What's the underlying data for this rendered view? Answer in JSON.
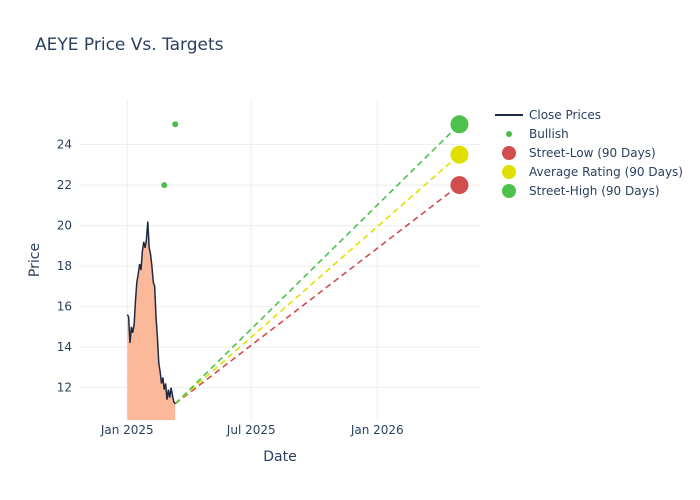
{
  "chart_data": {
    "type": "line",
    "title": "AEYE Price Vs. Targets",
    "xlabel": "Date",
    "ylabel": "Price",
    "xlim": [
      "2024-10-24",
      "2026-05-31"
    ],
    "ylim": [
      10.4,
      26.2
    ],
    "grid": true,
    "legend_position": "right",
    "x_ticks": [
      {
        "date": "2025-01-01",
        "label": "Jan 2025"
      },
      {
        "date": "2025-07-01",
        "label": "Jul 2025"
      },
      {
        "date": "2026-01-01",
        "label": "Jan 2026"
      }
    ],
    "y_ticks": [
      12,
      14,
      16,
      18,
      20,
      22,
      24
    ],
    "series": [
      {
        "name": "Close Prices",
        "type": "line",
        "color": "#1f2a44",
        "fill_color": "#fbb99a",
        "points": [
          [
            "2025-01-01",
            15.6
          ],
          [
            "2025-01-03",
            15.5
          ],
          [
            "2025-01-05",
            14.2
          ],
          [
            "2025-01-07",
            15.0
          ],
          [
            "2025-01-09",
            14.7
          ],
          [
            "2025-01-11",
            15.1
          ],
          [
            "2025-01-13",
            16.3
          ],
          [
            "2025-01-15",
            17.2
          ],
          [
            "2025-01-17",
            17.6
          ],
          [
            "2025-01-19",
            18.1
          ],
          [
            "2025-01-21",
            17.8
          ],
          [
            "2025-01-23",
            18.7
          ],
          [
            "2025-01-25",
            19.2
          ],
          [
            "2025-01-27",
            18.9
          ],
          [
            "2025-01-29",
            19.3
          ],
          [
            "2025-01-31",
            20.2
          ],
          [
            "2025-02-02",
            18.9
          ],
          [
            "2025-02-04",
            18.6
          ],
          [
            "2025-02-06",
            18.0
          ],
          [
            "2025-02-08",
            17.2
          ],
          [
            "2025-02-10",
            17.0
          ],
          [
            "2025-02-12",
            15.5
          ],
          [
            "2025-02-14",
            14.5
          ],
          [
            "2025-02-16",
            13.2
          ],
          [
            "2025-02-18",
            12.8
          ],
          [
            "2025-02-20",
            12.2
          ],
          [
            "2025-02-22",
            12.5
          ],
          [
            "2025-02-24",
            11.9
          ],
          [
            "2025-02-26",
            12.2
          ],
          [
            "2025-02-28",
            11.4
          ],
          [
            "2025-03-02",
            11.9
          ],
          [
            "2025-03-04",
            11.5
          ],
          [
            "2025-03-06",
            12.0
          ],
          [
            "2025-03-08",
            11.6
          ],
          [
            "2025-03-10",
            11.3
          ],
          [
            "2025-03-12",
            11.2
          ]
        ]
      },
      {
        "name": "Bullish",
        "type": "scatter",
        "color": "#4cbb4c",
        "points": [
          [
            "2025-02-24",
            22.0
          ],
          [
            "2025-03-12",
            25.0
          ]
        ]
      },
      {
        "name": "Street-Low (90 Days)",
        "type": "target",
        "color": "#d24d4d",
        "from": [
          "2025-03-12",
          11.2
        ],
        "to": [
          "2026-05-01",
          22.0
        ]
      },
      {
        "name": "Average Rating (90 Days)",
        "type": "target",
        "color": "#e0e000",
        "from": [
          "2025-03-12",
          11.2
        ],
        "to": [
          "2026-05-01",
          23.5
        ]
      },
      {
        "name": "Street-High (90 Days)",
        "type": "target",
        "color": "#4cc24c",
        "from": [
          "2025-03-12",
          11.2
        ],
        "to": [
          "2026-05-01",
          25.0
        ]
      }
    ]
  }
}
